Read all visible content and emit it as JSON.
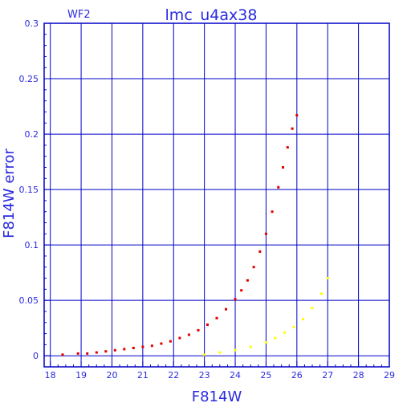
{
  "chart_data": {
    "type": "scatter",
    "title": "lmc_u4ax38",
    "subtitle": "WF2",
    "xlabel": "F814W",
    "ylabel": "F814W error",
    "xlim": [
      17.8,
      29
    ],
    "ylim": [
      -0.01,
      0.3
    ],
    "x_ticks": [
      "18",
      "19",
      "20",
      "21",
      "22",
      "23",
      "24",
      "25",
      "26",
      "27",
      "28",
      "29"
    ],
    "y_ticks": [
      "0",
      "0.05",
      "0.1",
      "0.15",
      "0.2",
      "0.25",
      "0.3"
    ],
    "grid": true,
    "colors": {
      "frame": "#0000c8",
      "grid": "#0000c8",
      "label": "#2a2ae0",
      "red": "#e00000",
      "yellow": "#ffff00"
    },
    "series": [
      {
        "color": "#e00000",
        "x": [
          18.4,
          18.9,
          19.2,
          19.5,
          19.8,
          20.1,
          20.4,
          20.7,
          21.0,
          21.3,
          21.6,
          21.9,
          22.2,
          22.5,
          22.8,
          23.1,
          23.4,
          23.7,
          24.0,
          24.2,
          24.4,
          24.6,
          24.8,
          25.0,
          25.2,
          25.4,
          25.55,
          25.7,
          25.85,
          26.0
        ],
        "y": [
          0.001,
          0.002,
          0.002,
          0.003,
          0.004,
          0.005,
          0.006,
          0.007,
          0.008,
          0.009,
          0.011,
          0.013,
          0.016,
          0.019,
          0.023,
          0.028,
          0.034,
          0.042,
          0.051,
          0.059,
          0.068,
          0.08,
          0.094,
          0.11,
          0.13,
          0.152,
          0.17,
          0.188,
          0.205,
          0.217
        ]
      },
      {
        "color": "#ffff00",
        "x": [
          23.0,
          23.5,
          24.0,
          24.5,
          25.0,
          25.3,
          25.6,
          25.9,
          26.2,
          26.5,
          26.8,
          27.0
        ],
        "y": [
          0.001,
          0.003,
          0.005,
          0.008,
          0.012,
          0.016,
          0.021,
          0.026,
          0.033,
          0.043,
          0.056,
          0.07
        ]
      }
    ]
  }
}
